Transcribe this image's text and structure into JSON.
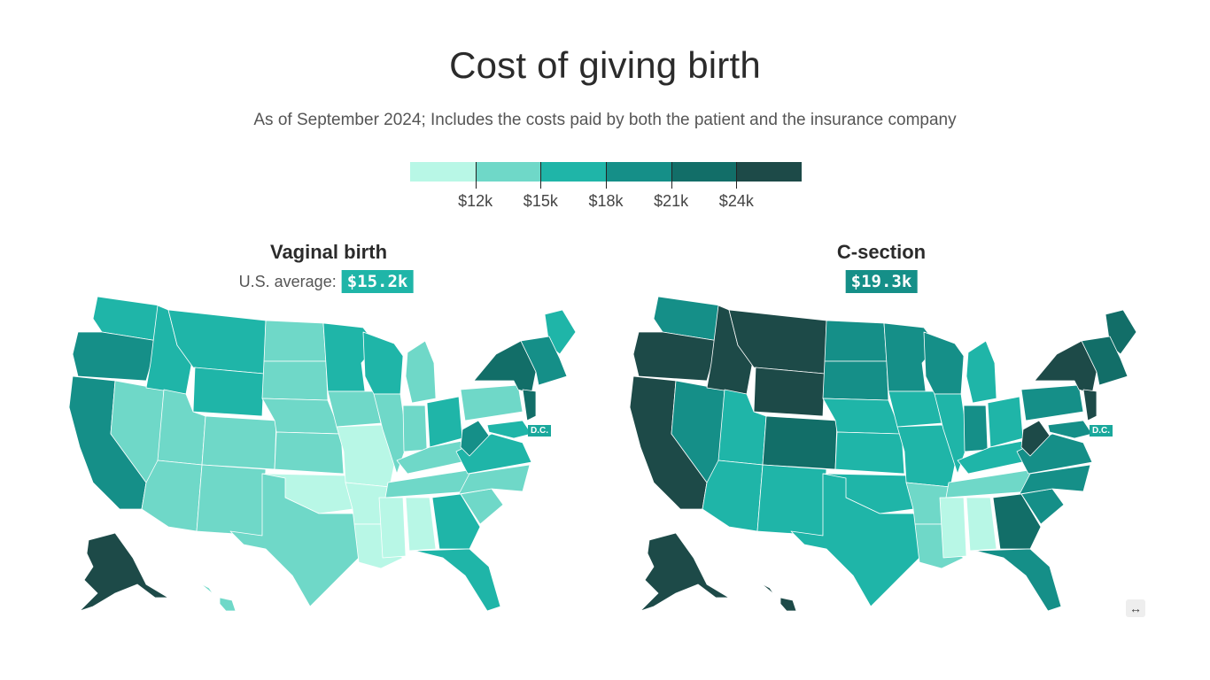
{
  "title": "Cost of giving birth",
  "subtitle": "As of September 2024; Includes the costs paid by both the patient and the insurance company",
  "legend": {
    "colors": [
      "#b8f7e6",
      "#6fd8c8",
      "#1fb5a8",
      "#158f88",
      "#126e68",
      "#1d4a48"
    ],
    "thresholds": [
      12,
      15,
      18,
      21,
      24
    ],
    "labels": [
      "$12k",
      "$15k",
      "$18k",
      "$21k",
      "$24k"
    ]
  },
  "panels": {
    "vaginal": {
      "title": "Vaginal birth",
      "avg_label": "U.S. average:",
      "avg_value": "$15.2k",
      "avg_color": "#1fb5a8",
      "dc_label": "D.C.",
      "states": {
        "WA": 3,
        "OR": 4,
        "CA": 4,
        "NV": 2,
        "ID": 3,
        "MT": 3,
        "WY": 3,
        "UT": 2,
        "CO": 2,
        "AZ": 2,
        "NM": 2,
        "ND": 2,
        "SD": 2,
        "NE": 2,
        "KS": 2,
        "OK": 1,
        "TX": 2,
        "MN": 3,
        "IA": 2,
        "MO": 1,
        "AR": 1,
        "LA": 1,
        "WI": 3,
        "IL": 2,
        "MI": 2,
        "IN": 2,
        "OH": 3,
        "KY": 2,
        "TN": 2,
        "MS": 1,
        "AL": 1,
        "GA": 3,
        "FL": 3,
        "SC": 2,
        "NC": 2,
        "VA": 3,
        "WV": 4,
        "PA": 2,
        "NY": 5,
        "ME": 3,
        "NE_NEW": 4,
        "NJ": 5,
        "MD": 3,
        "AK": 6,
        "HI": 2
      }
    },
    "csection": {
      "title": "C-section",
      "avg_label": "",
      "avg_value": "$19.3k",
      "avg_color": "#158f88",
      "dc_label": "D.C.",
      "states": {
        "WA": 4,
        "OR": 6,
        "CA": 6,
        "NV": 4,
        "ID": 6,
        "MT": 6,
        "WY": 6,
        "UT": 3,
        "CO": 5,
        "AZ": 3,
        "NM": 3,
        "ND": 4,
        "SD": 4,
        "NE": 3,
        "KS": 3,
        "OK": 3,
        "TX": 3,
        "MN": 4,
        "IA": 3,
        "MO": 3,
        "AR": 2,
        "LA": 2,
        "WI": 4,
        "IL": 3,
        "MI": 3,
        "IN": 4,
        "OH": 3,
        "KY": 3,
        "TN": 2,
        "MS": 1,
        "AL": 1,
        "GA": 5,
        "FL": 4,
        "SC": 4,
        "NC": 4,
        "VA": 4,
        "WV": 6,
        "PA": 4,
        "NY": 6,
        "ME": 5,
        "NE_NEW": 5,
        "NJ": 6,
        "MD": 4,
        "AK": 6,
        "HI": 6
      }
    }
  },
  "expand_icon": "↔"
}
